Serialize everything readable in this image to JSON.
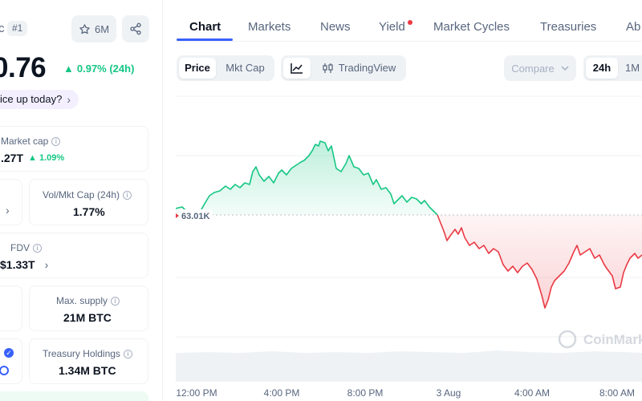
{
  "coin": {
    "symbol_partial": "c",
    "rank": "#1",
    "watchlist_count": "6M",
    "price": "0.76",
    "change_24h": "0.97% (24h)",
    "why_price": "ice up today?"
  },
  "stats": {
    "market_cap": {
      "label": "Market cap",
      "value": ".27T",
      "change": "1.09%"
    },
    "vol_mkt_cap": {
      "label": "Vol/Mkt Cap (24h)",
      "value": "1.77%"
    },
    "fdv": {
      "label": "FDV",
      "value": "$1.33T"
    },
    "max_supply": {
      "label": "Max. supply",
      "value": "21M BTC"
    },
    "treasury": {
      "label": "Treasury Holdings",
      "value": "1.34M BTC"
    }
  },
  "tabs": [
    {
      "label": "Chart",
      "active": true
    },
    {
      "label": "Markets"
    },
    {
      "label": "News"
    },
    {
      "label": "Yield",
      "dot": true
    },
    {
      "label": "Market Cycles"
    },
    {
      "label": "Treasuries"
    },
    {
      "label": "Ab"
    }
  ],
  "toolbar": {
    "price_label": "Price",
    "mktcap_label": "Mkt Cap",
    "tradingview_label": "TradingView",
    "compare_label": "Compare",
    "range_24h": "24h",
    "range_1m": "1M"
  },
  "chart_data": {
    "type": "area",
    "baseline_label": "63.01K",
    "watermark": "CoinMarke",
    "x_ticks": [
      "12:00 PM",
      "4:00 PM",
      "8:00 PM",
      "3 Aug",
      "4:00 AM",
      "8:00 AM"
    ],
    "colors": {
      "up": "#16c784",
      "down": "#ea3943",
      "up_fill": "#e3f8ef",
      "down_fill": "#fde6e7",
      "baseline": "#b8c0cc"
    }
  },
  "icons": {
    "watch": "star-icon",
    "share": "share-icon",
    "line_chart": "line-chart-icon",
    "candles": "candlestick-icon",
    "chevron": "chevron-down-icon"
  }
}
